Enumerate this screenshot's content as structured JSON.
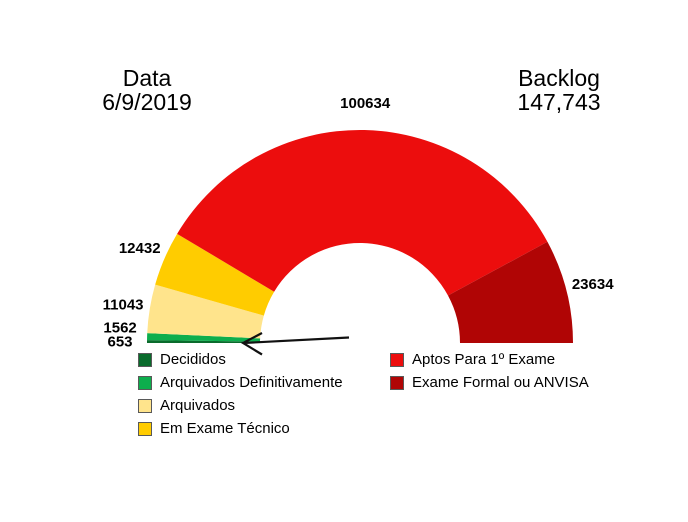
{
  "header": {
    "date_label": "Data",
    "date_value": "6/9/2019",
    "backlog_label": "Backlog",
    "backlog_value": "147,743"
  },
  "chart_data": {
    "type": "pie",
    "subtype": "half-donut-gauge",
    "segments": [
      {
        "label": "Decididos",
        "value": 653,
        "color": "#0A6B2C"
      },
      {
        "label": "Arquivados Definitivamente",
        "value": 1562,
        "color": "#0DAE4D"
      },
      {
        "label": "Arquivados",
        "value": 11043,
        "color": "#FFE48C"
      },
      {
        "label": "Em Exame Técnico",
        "value": 12432,
        "color": "#FFCC00"
      },
      {
        "label": "Aptos Para 1º Exame",
        "value": 100634,
        "color": "#EC0D0D"
      },
      {
        "label": "Exame Formal ou ANVISA",
        "value": 23634,
        "color": "#B00505"
      }
    ],
    "layout_hints": {
      "start": "bottom-left",
      "sweep": "clockwise-over-top",
      "data_labels": "outside-bold",
      "arrow_annotation": "points to thin green segments (1562 / 653)",
      "legend_position": "below-two-columns"
    },
    "legend_columns": {
      "left": [
        0,
        1,
        2,
        3
      ],
      "right": [
        4,
        5
      ]
    }
  }
}
